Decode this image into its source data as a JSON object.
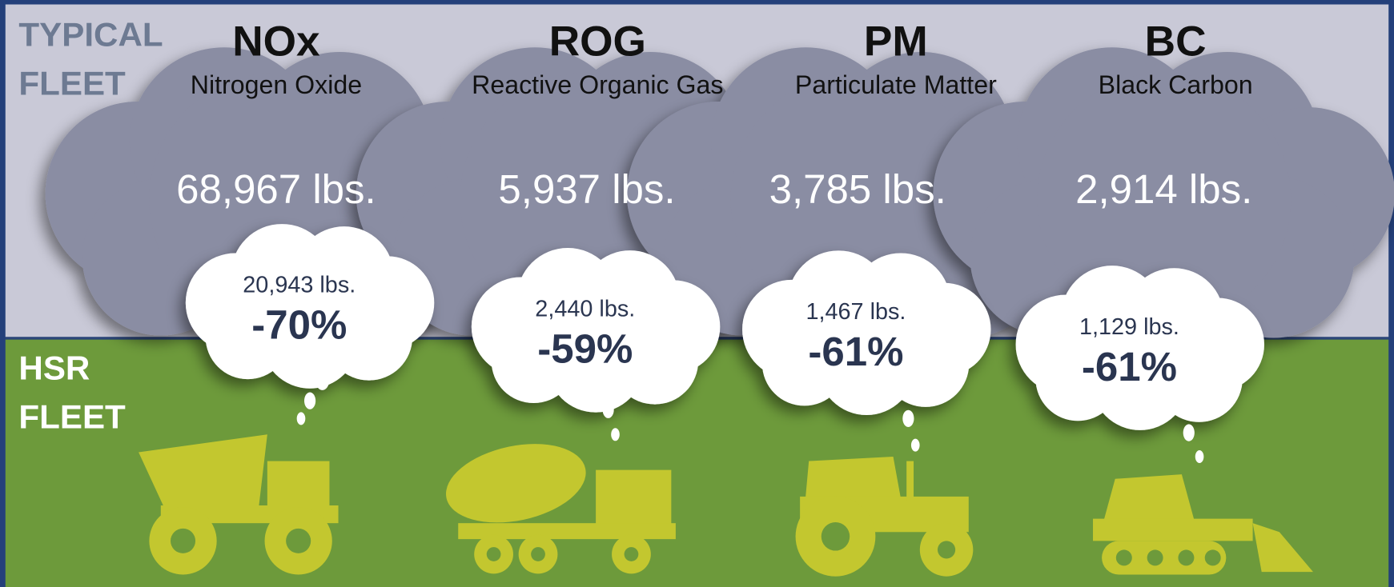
{
  "typical_label": [
    "TYPICAL",
    "FLEET"
  ],
  "hsr_label": [
    "HSR",
    "FLEET"
  ],
  "pollutants": [
    {
      "abbr": "NOx",
      "name": "Nitrogen Oxide",
      "typical": "68,967 lbs.",
      "hsr": "20,943 lbs.",
      "change": "-70%"
    },
    {
      "abbr": "ROG",
      "name": "Reactive Organic Gas",
      "typical": "5,937 lbs.",
      "hsr": "2,440 lbs.",
      "change": "-59%"
    },
    {
      "abbr": "PM",
      "name": "Particulate Matter",
      "typical": "3,785 lbs.",
      "hsr": "1,467 lbs.",
      "change": "-61%"
    },
    {
      "abbr": "BC",
      "name": "Black Carbon",
      "typical": "2,914 lbs.",
      "hsr": "1,129 lbs.",
      "change": "-61%"
    }
  ]
}
